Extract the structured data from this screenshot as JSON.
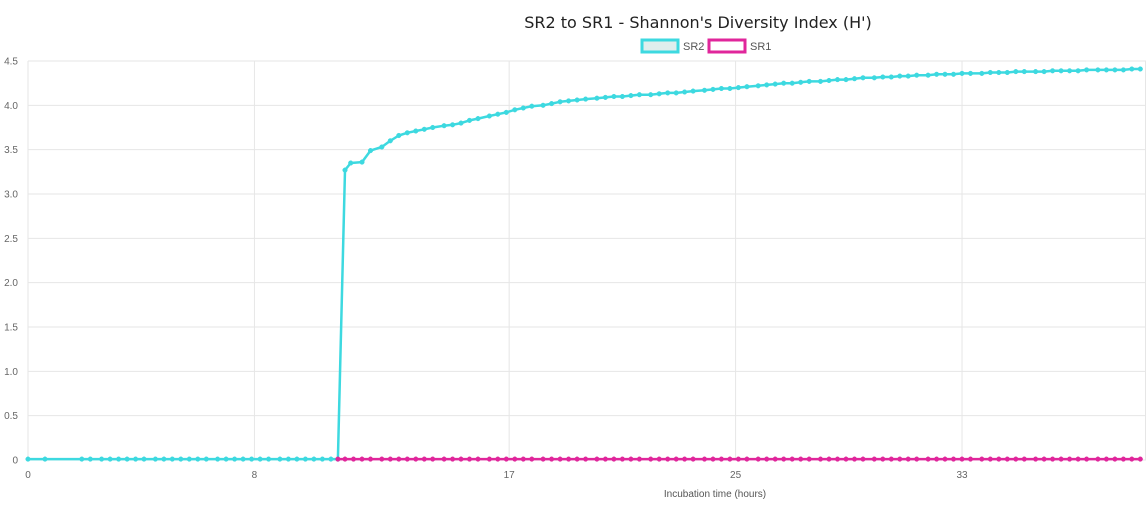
{
  "chart_data": {
    "type": "line",
    "title": "SR2 to SR1 - Shannon's Diversity Index (H')",
    "xlabel": "Incubation time (hours)",
    "ylabel": "",
    "xlim": [
      0,
      39.5
    ],
    "ylim": [
      0,
      4.5
    ],
    "x_ticks": [
      "0",
      "8",
      "17",
      "25",
      "33"
    ],
    "x_tick_values": [
      0,
      8,
      17,
      25,
      33
    ],
    "y_ticks": [
      "0",
      "0.5",
      "1.0",
      "1.5",
      "2.0",
      "2.5",
      "3.0",
      "3.5",
      "4.0",
      "4.5"
    ],
    "y_tick_values": [
      0,
      0.5,
      1.0,
      1.5,
      2.0,
      2.5,
      3.0,
      3.5,
      4.0,
      4.5
    ],
    "grid": true,
    "legend_position": "top-center",
    "series": [
      {
        "name": "SR2",
        "color": "#3dd9e0",
        "fill": "#dfeeed",
        "x": [
          0,
          0.6,
          1.9,
          2.2,
          2.6,
          2.9,
          3.2,
          3.5,
          3.8,
          4.1,
          4.5,
          4.8,
          5.1,
          5.4,
          5.7,
          6.0,
          6.3,
          6.7,
          7.0,
          7.3,
          7.6,
          7.9,
          8.2,
          8.5,
          8.9,
          9.2,
          9.5,
          9.8,
          10.1,
          10.4,
          10.7,
          10.95,
          11.2,
          11.4,
          11.8,
          12.1,
          12.5,
          12.8,
          13.1,
          13.4,
          13.7,
          14.0,
          14.3,
          14.7,
          15.0,
          15.3,
          15.6,
          15.9,
          16.3,
          16.6,
          16.9,
          17.2,
          17.5,
          17.8,
          18.2,
          18.5,
          18.8,
          19.1,
          19.4,
          19.7,
          20.1,
          20.4,
          20.7,
          21.0,
          21.3,
          21.6,
          22.0,
          22.3,
          22.6,
          22.9,
          23.2,
          23.5,
          23.9,
          24.2,
          24.5,
          24.8,
          25.1,
          25.4,
          25.8,
          26.1,
          26.4,
          26.7,
          27.0,
          27.3,
          27.6,
          28.0,
          28.3,
          28.6,
          28.9,
          29.2,
          29.5,
          29.9,
          30.2,
          30.5,
          30.8,
          31.1,
          31.4,
          31.8,
          32.1,
          32.4,
          32.7,
          33.0,
          33.3,
          33.7,
          34.0,
          34.3,
          34.6,
          34.9,
          35.2,
          35.6,
          35.9,
          36.2,
          36.5,
          36.8,
          37.1,
          37.4,
          37.8,
          38.1,
          38.4,
          38.7,
          39.0,
          39.3
        ],
        "values": [
          0.01,
          0.01,
          0.01,
          0.01,
          0.01,
          0.01,
          0.01,
          0.01,
          0.01,
          0.01,
          0.01,
          0.01,
          0.01,
          0.01,
          0.01,
          0.01,
          0.01,
          0.01,
          0.01,
          0.01,
          0.01,
          0.01,
          0.01,
          0.01,
          0.01,
          0.01,
          0.01,
          0.01,
          0.01,
          0.01,
          0.01,
          0.01,
          3.27,
          3.35,
          3.36,
          3.49,
          3.53,
          3.6,
          3.66,
          3.69,
          3.71,
          3.73,
          3.75,
          3.77,
          3.78,
          3.8,
          3.83,
          3.85,
          3.88,
          3.9,
          3.92,
          3.95,
          3.97,
          3.99,
          4.0,
          4.02,
          4.04,
          4.05,
          4.06,
          4.07,
          4.08,
          4.09,
          4.1,
          4.1,
          4.11,
          4.12,
          4.12,
          4.13,
          4.14,
          4.14,
          4.15,
          4.16,
          4.17,
          4.18,
          4.19,
          4.19,
          4.2,
          4.21,
          4.22,
          4.23,
          4.24,
          4.25,
          4.25,
          4.26,
          4.27,
          4.27,
          4.28,
          4.29,
          4.29,
          4.3,
          4.31,
          4.31,
          4.32,
          4.32,
          4.33,
          4.33,
          4.34,
          4.34,
          4.35,
          4.35,
          4.35,
          4.36,
          4.36,
          4.36,
          4.37,
          4.37,
          4.37,
          4.38,
          4.38,
          4.38,
          4.38,
          4.39,
          4.39,
          4.39,
          4.39,
          4.4,
          4.4,
          4.4,
          4.4,
          4.4,
          4.41,
          4.41
        ]
      },
      {
        "name": "SR1",
        "color": "#e0269b",
        "fill": "#ffffff",
        "x": [
          10.95,
          11.2,
          11.5,
          11.8,
          12.1,
          12.5,
          12.8,
          13.1,
          13.4,
          13.7,
          14.0,
          14.3,
          14.7,
          15.0,
          15.3,
          15.6,
          15.9,
          16.3,
          16.6,
          16.9,
          17.2,
          17.5,
          17.8,
          18.2,
          18.5,
          18.8,
          19.1,
          19.4,
          19.7,
          20.1,
          20.4,
          20.7,
          21.0,
          21.3,
          21.6,
          22.0,
          22.3,
          22.6,
          22.9,
          23.2,
          23.5,
          23.9,
          24.2,
          24.5,
          24.8,
          25.1,
          25.4,
          25.8,
          26.1,
          26.4,
          26.7,
          27.0,
          27.3,
          27.6,
          28.0,
          28.3,
          28.6,
          28.9,
          29.2,
          29.5,
          29.9,
          30.2,
          30.5,
          30.8,
          31.1,
          31.4,
          31.8,
          32.1,
          32.4,
          32.7,
          33.0,
          33.3,
          33.7,
          34.0,
          34.3,
          34.6,
          34.9,
          35.2,
          35.6,
          35.9,
          36.2,
          36.5,
          36.8,
          37.1,
          37.4,
          37.8,
          38.1,
          38.4,
          38.7,
          39.0,
          39.3
        ],
        "values": [
          0.01,
          0.01,
          0.01,
          0.01,
          0.01,
          0.01,
          0.01,
          0.01,
          0.01,
          0.01,
          0.01,
          0.01,
          0.01,
          0.01,
          0.01,
          0.01,
          0.01,
          0.01,
          0.01,
          0.01,
          0.01,
          0.01,
          0.01,
          0.01,
          0.01,
          0.01,
          0.01,
          0.01,
          0.01,
          0.01,
          0.01,
          0.01,
          0.01,
          0.01,
          0.01,
          0.01,
          0.01,
          0.01,
          0.01,
          0.01,
          0.01,
          0.01,
          0.01,
          0.01,
          0.01,
          0.01,
          0.01,
          0.01,
          0.01,
          0.01,
          0.01,
          0.01,
          0.01,
          0.01,
          0.01,
          0.01,
          0.01,
          0.01,
          0.01,
          0.01,
          0.01,
          0.01,
          0.01,
          0.01,
          0.01,
          0.01,
          0.01,
          0.01,
          0.01,
          0.01,
          0.01,
          0.01,
          0.01,
          0.01,
          0.01,
          0.01,
          0.01,
          0.01,
          0.01,
          0.01,
          0.01,
          0.01,
          0.01,
          0.01,
          0.01,
          0.01,
          0.01,
          0.01,
          0.01,
          0.01,
          0.01
        ]
      }
    ]
  }
}
